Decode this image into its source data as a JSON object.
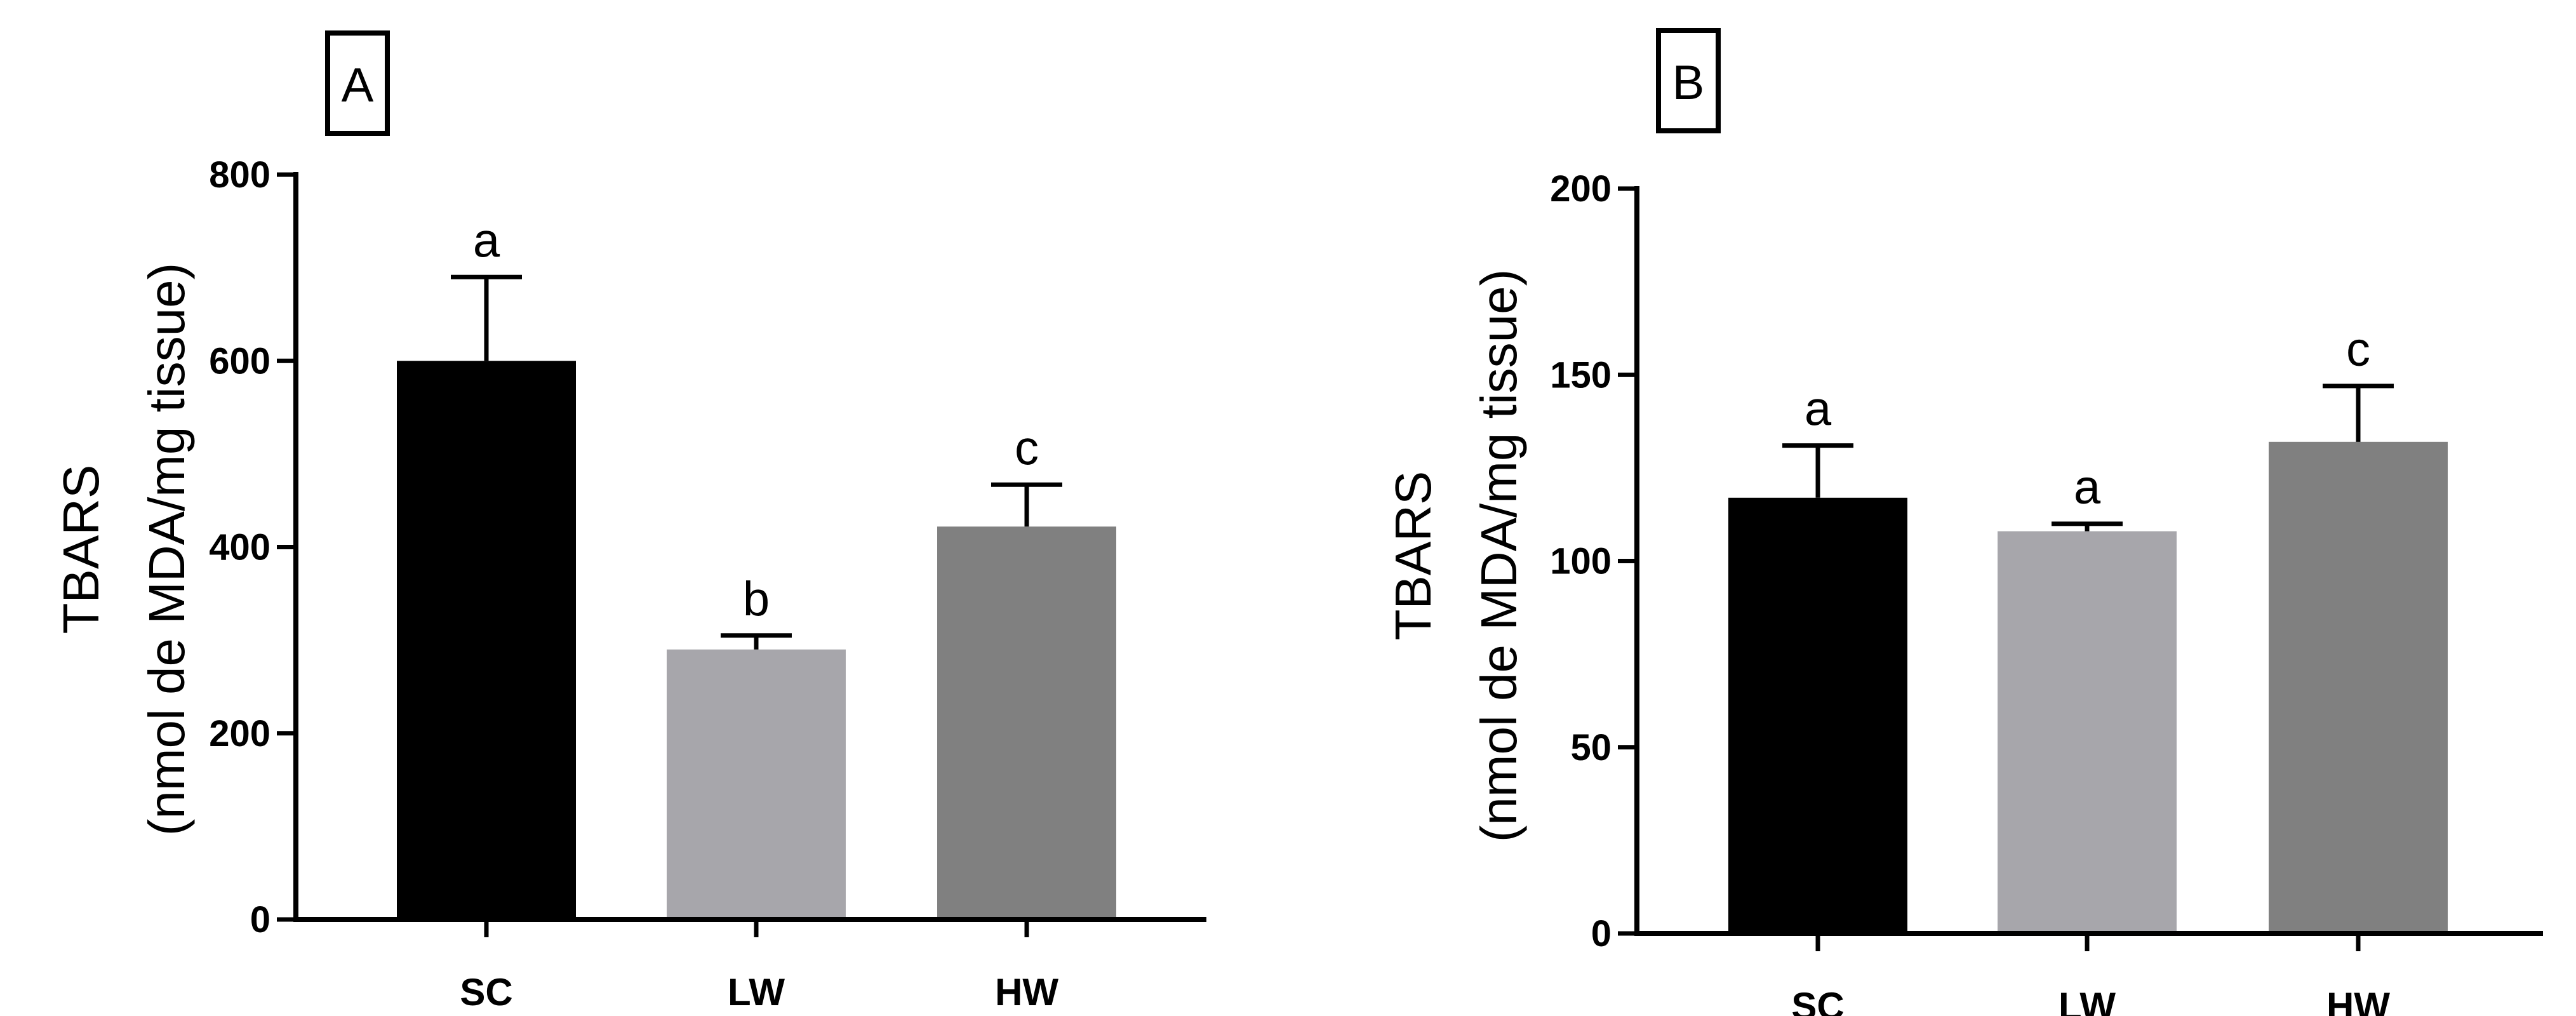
{
  "chart_data": [
    {
      "type": "bar",
      "panel_label": "A",
      "categories": [
        "SC",
        "LW",
        "HW"
      ],
      "values": [
        600,
        290,
        422
      ],
      "errors": [
        90,
        15,
        45
      ],
      "significance": [
        "a",
        "b",
        "c"
      ],
      "colors": [
        "#000000",
        "#a7a6ab",
        "#808080"
      ],
      "ylabel_line1": "TBARS",
      "ylabel_line2": "(nmol de MDA/mg tissue)",
      "ylim": [
        0,
        800
      ],
      "yticks": [
        0,
        200,
        400,
        600,
        800
      ],
      "ytick_labels": [
        "0",
        "200",
        "400",
        "600",
        "800"
      ],
      "grid": false
    },
    {
      "type": "bar",
      "panel_label": "B",
      "categories": [
        "SC",
        "LW",
        "HW"
      ],
      "values": [
        117,
        108,
        132
      ],
      "errors": [
        14,
        2,
        15
      ],
      "significance": [
        "a",
        "a",
        "c"
      ],
      "colors": [
        "#000000",
        "#a7a6ab",
        "#808080"
      ],
      "ylabel_line1": "TBARS",
      "ylabel_line2": "(nmol de MDA/mg tissue)",
      "ylim": [
        0,
        200
      ],
      "yticks": [
        0,
        50,
        100,
        150,
        200
      ],
      "ytick_labels": [
        "0",
        "50",
        "100",
        "150",
        "200"
      ],
      "grid": false
    }
  ]
}
